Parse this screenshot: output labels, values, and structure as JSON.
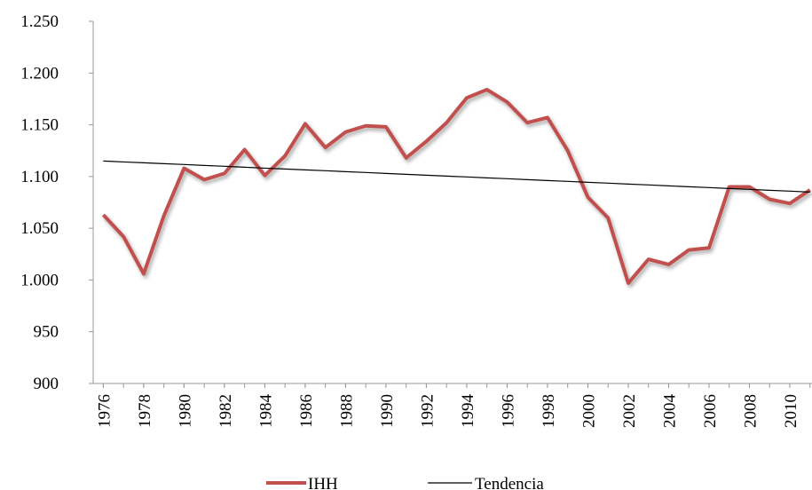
{
  "chart_data": {
    "type": "line",
    "x": [
      1976,
      1977,
      1978,
      1979,
      1980,
      1981,
      1982,
      1983,
      1984,
      1985,
      1986,
      1987,
      1988,
      1989,
      1990,
      1991,
      1992,
      1993,
      1994,
      1995,
      1996,
      1997,
      1998,
      1999,
      2000,
      2001,
      2002,
      2003,
      2004,
      2005,
      2006,
      2007,
      2008,
      2009,
      2010,
      2011
    ],
    "series": [
      {
        "name": "IHH",
        "color": "#c0504d",
        "values": [
          1063,
          1042,
          1006,
          1062,
          1108,
          1097,
          1103,
          1126,
          1101,
          1120,
          1151,
          1128,
          1143,
          1149,
          1148,
          1118,
          1134,
          1152,
          1176,
          1184,
          1172,
          1152,
          1157,
          1125,
          1080,
          1060,
          997,
          1020,
          1015,
          1029,
          1031,
          1090,
          1090,
          1078,
          1074,
          1087
        ]
      },
      {
        "name": "Tendencia",
        "color": "#000000",
        "values": [
          1115,
          1114.1,
          1113.3,
          1112.4,
          1111.6,
          1110.7,
          1109.9,
          1109.0,
          1108.1,
          1107.3,
          1106.4,
          1105.6,
          1104.7,
          1103.9,
          1103.0,
          1102.1,
          1101.3,
          1100.4,
          1099.6,
          1098.7,
          1097.9,
          1097.0,
          1096.1,
          1095.3,
          1094.4,
          1093.6,
          1092.7,
          1091.9,
          1091.0,
          1090.1,
          1089.3,
          1088.4,
          1087.6,
          1086.7,
          1085.9,
          1085.0
        ]
      }
    ],
    "xlim": [
      1975.5,
      2011.1
    ],
    "xticks": [
      1976,
      1978,
      1980,
      1982,
      1984,
      1986,
      1988,
      1990,
      1992,
      1994,
      1996,
      1998,
      2000,
      2002,
      2004,
      2006,
      2008,
      2010
    ],
    "ylim": [
      900,
      1250
    ],
    "yticks": [
      900,
      950,
      {
        "value": 1000,
        "label": "1.000"
      },
      {
        "value": 1050,
        "label": "1.050"
      },
      {
        "value": 1100,
        "label": "1.100"
      },
      {
        "value": 1150,
        "label": "1.150"
      },
      {
        "value": 1200,
        "label": "1.200"
      },
      {
        "value": 1250,
        "label": "1.250"
      }
    ],
    "grid": false,
    "legend": "bottom"
  }
}
